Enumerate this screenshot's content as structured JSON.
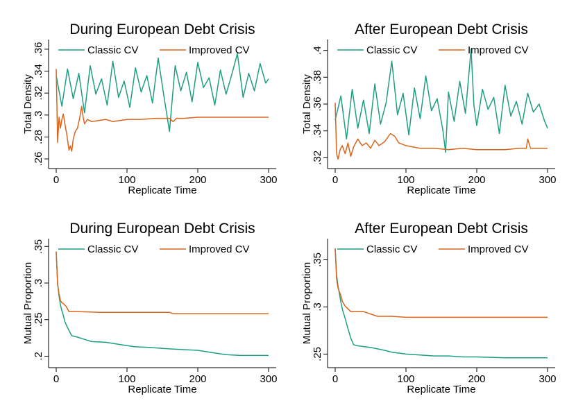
{
  "colors": {
    "classic": "#1f9e82",
    "improved": "#d9651c",
    "axis": "#000000"
  },
  "chart_data": [
    {
      "type": "line",
      "title": "During European Debt Crisis",
      "xlabel": "Replicate Time",
      "ylabel": "Total Density",
      "xlim": [
        0,
        300
      ],
      "ylim": [
        0.255,
        0.365
      ],
      "xticks": [
        0,
        100,
        200,
        300
      ],
      "xtick_labels": [
        "0",
        "100",
        "200",
        "300"
      ],
      "yticks": [
        0.26,
        0.28,
        0.3,
        0.32,
        0.34,
        0.36
      ],
      "ytick_labels": [
        ".26",
        ".28",
        ".3",
        ".32",
        ".34",
        ".36"
      ],
      "legend": [
        "Classic CV",
        "Improved CV"
      ],
      "series": [
        {
          "name": "Classic CV",
          "color_key": "classic",
          "x": [
            0,
            8,
            16,
            24,
            32,
            40,
            48,
            56,
            64,
            72,
            80,
            88,
            96,
            104,
            112,
            120,
            128,
            136,
            144,
            152,
            160,
            168,
            176,
            184,
            192,
            200,
            208,
            216,
            224,
            232,
            240,
            248,
            256,
            264,
            272,
            280,
            288,
            296,
            300
          ],
          "values": [
            0.336,
            0.308,
            0.342,
            0.315,
            0.338,
            0.302,
            0.345,
            0.319,
            0.333,
            0.309,
            0.349,
            0.316,
            0.331,
            0.307,
            0.343,
            0.321,
            0.336,
            0.311,
            0.352,
            0.318,
            0.285,
            0.345,
            0.322,
            0.339,
            0.312,
            0.348,
            0.325,
            0.334,
            0.309,
            0.341,
            0.319,
            0.337,
            0.356,
            0.316,
            0.338,
            0.322,
            0.347,
            0.329,
            0.333
          ]
        },
        {
          "name": "Improved CV",
          "color_key": "improved",
          "x": [
            0,
            2,
            4,
            6,
            8,
            10,
            12,
            15,
            18,
            20,
            22,
            24,
            27,
            30,
            33,
            36,
            38,
            40,
            44,
            50,
            60,
            70,
            80,
            90,
            100,
            120,
            140,
            160,
            165,
            170,
            180,
            200,
            220,
            240,
            260,
            280,
            300
          ],
          "values": [
            0.342,
            0.275,
            0.298,
            0.288,
            0.296,
            0.301,
            0.293,
            0.282,
            0.268,
            0.272,
            0.267,
            0.278,
            0.285,
            0.288,
            0.297,
            0.308,
            0.298,
            0.292,
            0.296,
            0.294,
            0.295,
            0.296,
            0.294,
            0.295,
            0.296,
            0.296,
            0.297,
            0.297,
            0.294,
            0.297,
            0.297,
            0.298,
            0.298,
            0.298,
            0.298,
            0.298,
            0.298
          ]
        }
      ]
    },
    {
      "type": "line",
      "title": "After European Debt Crisis",
      "xlabel": "Replicate Time",
      "ylabel": "Total Density",
      "xlim": [
        0,
        300
      ],
      "ylim": [
        0.315,
        0.405
      ],
      "xticks": [
        0,
        100,
        200,
        300
      ],
      "xtick_labels": [
        "0",
        "100",
        "200",
        "300"
      ],
      "yticks": [
        0.32,
        0.34,
        0.36,
        0.38,
        0.4
      ],
      "ytick_labels": [
        ".32",
        ".34",
        ".36",
        ".38",
        ".4"
      ],
      "legend": [
        "Classic CV",
        "Improved CV"
      ],
      "series": [
        {
          "name": "Classic CV",
          "color_key": "classic",
          "x": [
            0,
            8,
            16,
            24,
            32,
            40,
            48,
            56,
            64,
            72,
            80,
            88,
            96,
            104,
            112,
            120,
            128,
            136,
            144,
            152,
            156,
            160,
            168,
            176,
            184,
            192,
            196,
            200,
            208,
            216,
            224,
            232,
            240,
            248,
            256,
            264,
            272,
            280,
            288,
            296,
            300
          ],
          "values": [
            0.348,
            0.366,
            0.334,
            0.371,
            0.342,
            0.363,
            0.338,
            0.375,
            0.345,
            0.361,
            0.392,
            0.352,
            0.368,
            0.337,
            0.372,
            0.349,
            0.381,
            0.355,
            0.364,
            0.341,
            0.324,
            0.369,
            0.347,
            0.377,
            0.353,
            0.401,
            0.359,
            0.344,
            0.371,
            0.356,
            0.365,
            0.338,
            0.374,
            0.351,
            0.362,
            0.345,
            0.368,
            0.354,
            0.36,
            0.347,
            0.342
          ]
        },
        {
          "name": "Improved CV",
          "color_key": "improved",
          "x": [
            0,
            2,
            4,
            7,
            10,
            14,
            18,
            22,
            26,
            32,
            38,
            44,
            50,
            56,
            62,
            70,
            78,
            84,
            90,
            100,
            110,
            120,
            140,
            160,
            180,
            200,
            220,
            240,
            260,
            270,
            272,
            276,
            280,
            300
          ],
          "values": [
            0.361,
            0.323,
            0.319,
            0.326,
            0.329,
            0.323,
            0.331,
            0.321,
            0.328,
            0.334,
            0.329,
            0.331,
            0.327,
            0.333,
            0.329,
            0.332,
            0.338,
            0.336,
            0.331,
            0.329,
            0.328,
            0.327,
            0.327,
            0.326,
            0.327,
            0.326,
            0.326,
            0.326,
            0.327,
            0.327,
            0.334,
            0.327,
            0.327,
            0.327
          ]
        }
      ]
    },
    {
      "type": "line",
      "title": "During European Debt Crisis",
      "xlabel": "Replicate Time",
      "ylabel": "Mutual Proportion",
      "xlim": [
        0,
        300
      ],
      "ylim": [
        0.19,
        0.355
      ],
      "xticks": [
        0,
        100,
        200,
        300
      ],
      "xtick_labels": [
        "0",
        "100",
        "200",
        "300"
      ],
      "yticks": [
        0.2,
        0.25,
        0.3,
        0.35
      ],
      "ytick_labels": [
        ".2",
        ".25",
        ".3",
        ".35"
      ],
      "legend": [
        "Classic CV",
        "Improved CV"
      ],
      "series": [
        {
          "name": "Classic CV",
          "color_key": "classic",
          "x": [
            0,
            2,
            4,
            6,
            8,
            10,
            12,
            15,
            18,
            22,
            30,
            40,
            50,
            70,
            90,
            110,
            130,
            160,
            180,
            200,
            220,
            240,
            260,
            280,
            300
          ],
          "values": [
            0.343,
            0.3,
            0.282,
            0.27,
            0.262,
            0.256,
            0.248,
            0.241,
            0.235,
            0.228,
            0.226,
            0.223,
            0.22,
            0.219,
            0.216,
            0.213,
            0.212,
            0.21,
            0.209,
            0.208,
            0.205,
            0.202,
            0.201,
            0.201,
            0.201
          ]
        },
        {
          "name": "Improved CV",
          "color_key": "improved",
          "x": [
            0,
            2,
            4,
            6,
            8,
            10,
            14,
            18,
            30,
            60,
            100,
            130,
            160,
            165,
            200,
            250,
            300
          ],
          "values": [
            0.343,
            0.298,
            0.285,
            0.276,
            0.273,
            0.272,
            0.268,
            0.261,
            0.261,
            0.26,
            0.26,
            0.26,
            0.26,
            0.258,
            0.258,
            0.258,
            0.258
          ]
        }
      ]
    },
    {
      "type": "line",
      "title": "After European Debt Crisis",
      "xlabel": "Replicate Time",
      "ylabel": "Mutual Proportion",
      "xlim": [
        0,
        300
      ],
      "ylim": [
        0.24,
        0.368
      ],
      "xticks": [
        0,
        100,
        200,
        300
      ],
      "xtick_labels": [
        "0",
        "100",
        "200",
        "300"
      ],
      "yticks": [
        0.25,
        0.3,
        0.35
      ],
      "ytick_labels": [
        ".25",
        ".3",
        ".35"
      ],
      "legend": [
        "Classic CV",
        "Improved CV"
      ],
      "series": [
        {
          "name": "Classic CV",
          "color_key": "classic",
          "x": [
            0,
            2,
            4,
            6,
            8,
            10,
            14,
            18,
            22,
            26,
            30,
            50,
            70,
            80,
            90,
            100,
            120,
            140,
            160,
            180,
            200,
            240,
            300
          ],
          "values": [
            0.362,
            0.334,
            0.322,
            0.314,
            0.305,
            0.298,
            0.288,
            0.277,
            0.267,
            0.26,
            0.259,
            0.257,
            0.254,
            0.252,
            0.251,
            0.25,
            0.249,
            0.248,
            0.248,
            0.247,
            0.247,
            0.246,
            0.246
          ]
        },
        {
          "name": "Improved CV",
          "color_key": "improved",
          "x": [
            0,
            2,
            4,
            6,
            8,
            10,
            14,
            18,
            22,
            26,
            40,
            60,
            80,
            100,
            150,
            200,
            250,
            300
          ],
          "values": [
            0.362,
            0.33,
            0.32,
            0.316,
            0.312,
            0.306,
            0.301,
            0.298,
            0.295,
            0.295,
            0.295,
            0.29,
            0.29,
            0.289,
            0.289,
            0.289,
            0.289,
            0.289
          ]
        }
      ]
    }
  ]
}
